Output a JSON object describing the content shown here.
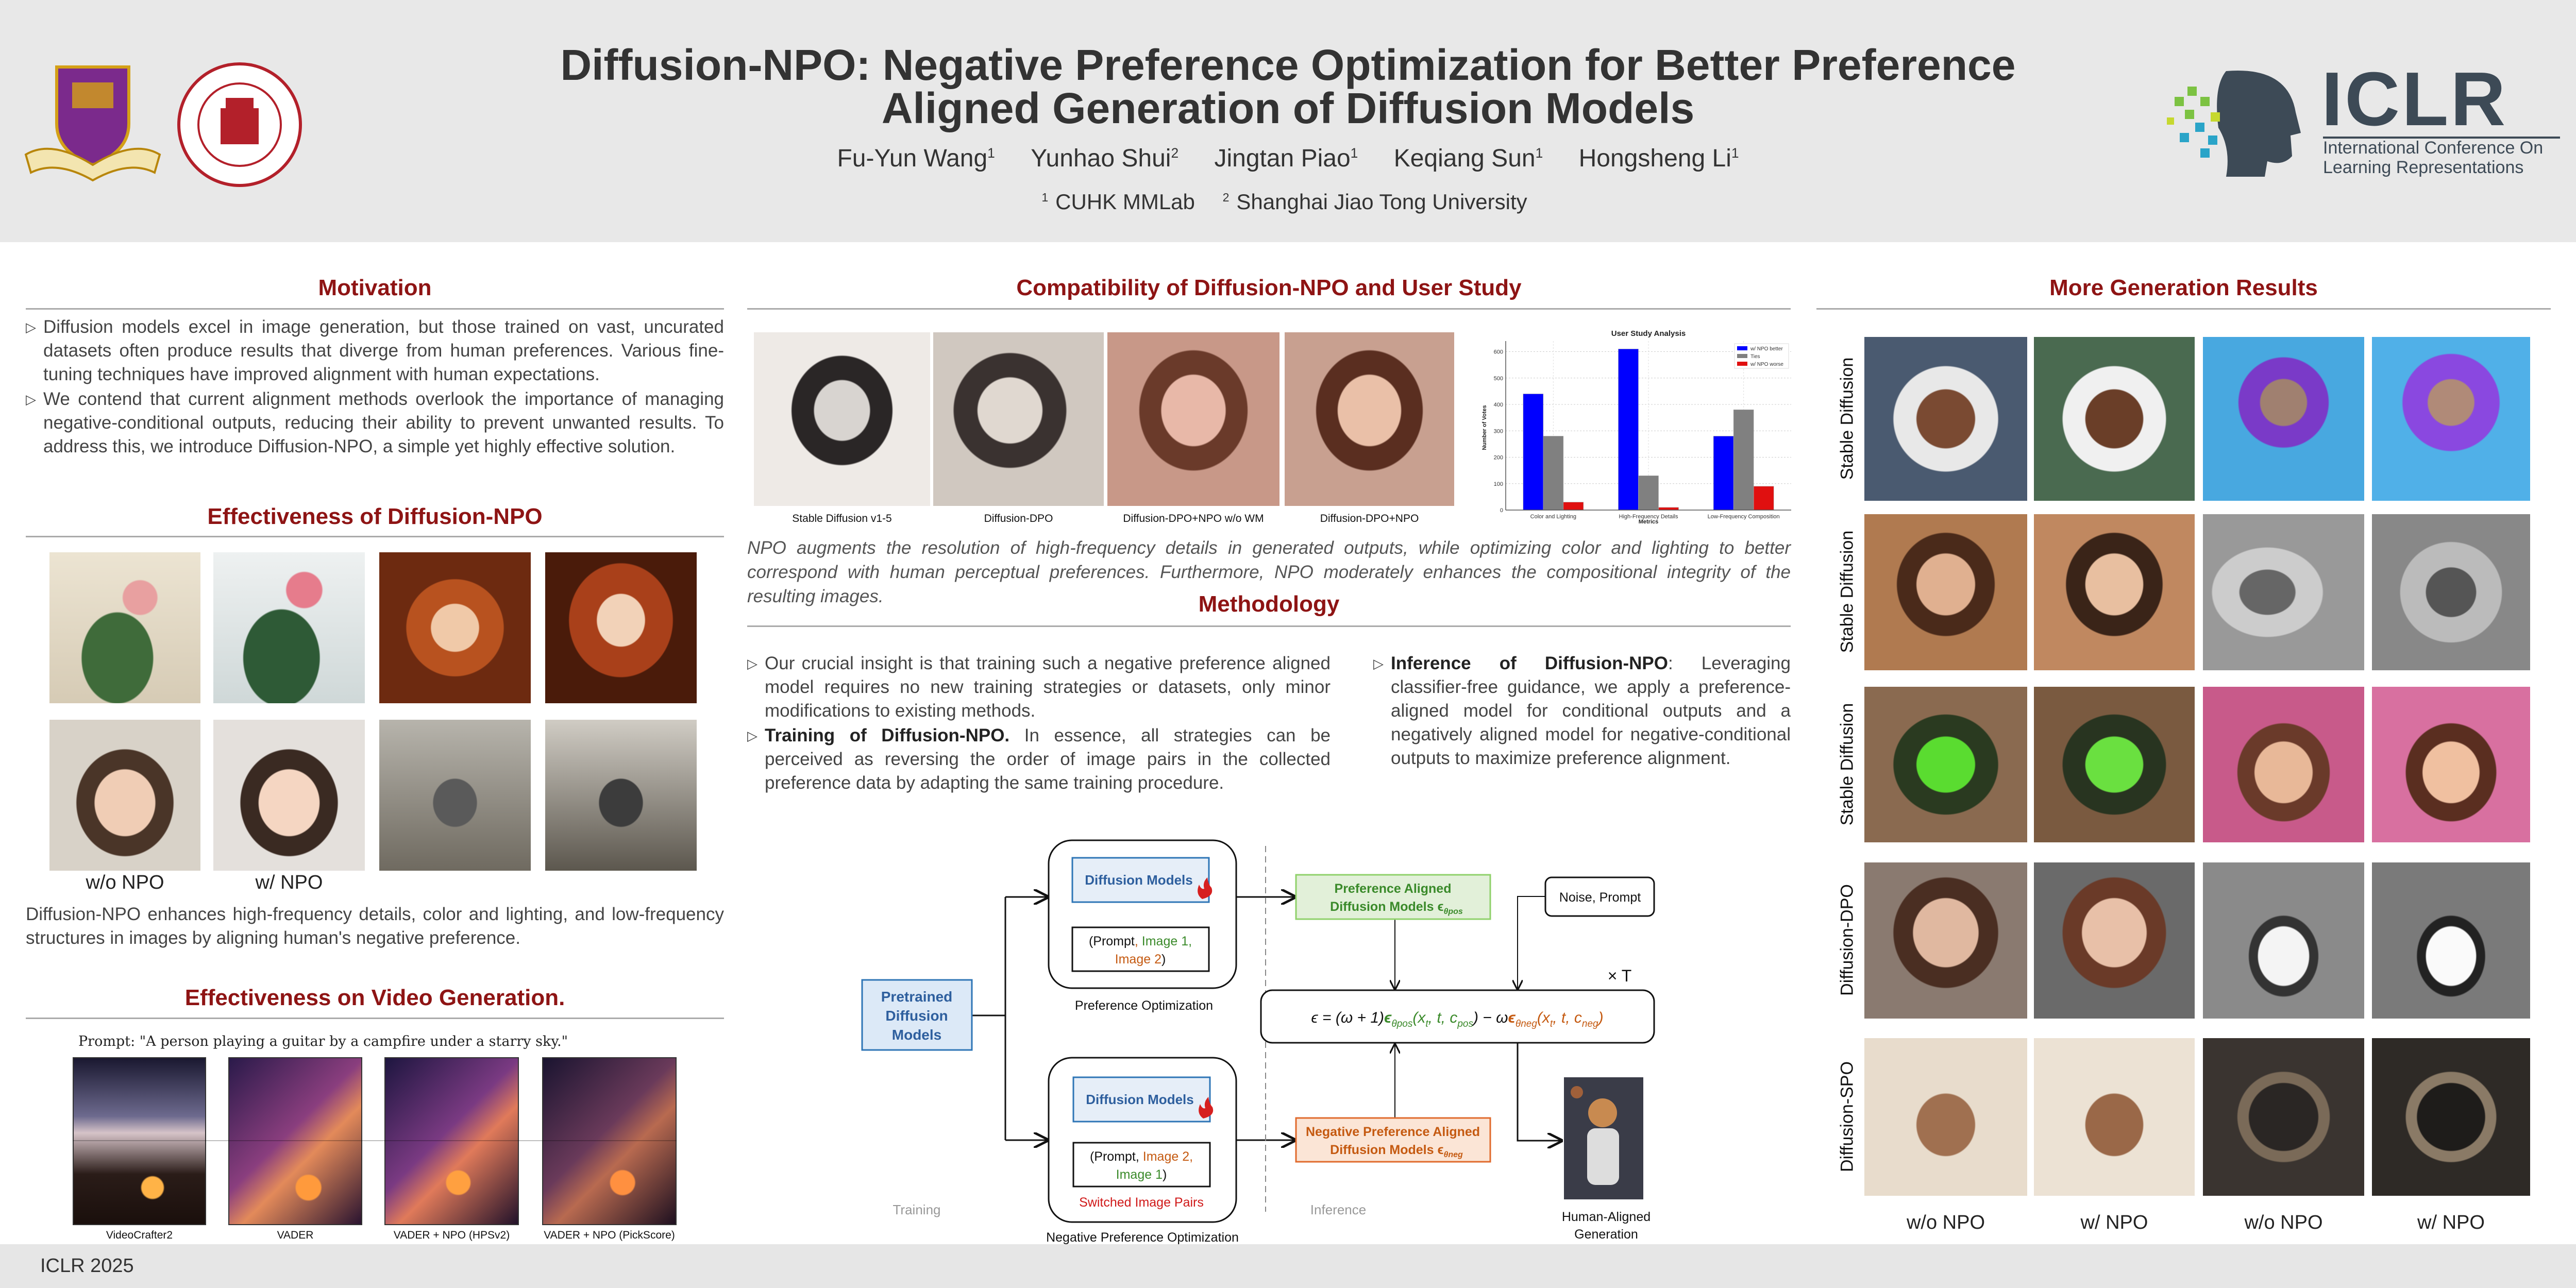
{
  "header": {
    "title_line1": "Diffusion-NPO: Negative Preference Optimization for Better Preference",
    "title_line2": "Aligned Generation of Diffusion Models",
    "authors": [
      {
        "name": "Fu-Yun Wang",
        "sup": "1"
      },
      {
        "name": "Yunhao Shui",
        "sup": "2"
      },
      {
        "name": "Jingtan Piao",
        "sup": "1"
      },
      {
        "name": "Keqiang Sun",
        "sup": "1"
      },
      {
        "name": "Hongsheng Li",
        "sup": "1"
      }
    ],
    "affiliations": [
      {
        "sup": "1",
        "name": "CUHK MMLab"
      },
      {
        "sup": "2",
        "name": "Shanghai Jiao Tong University"
      }
    ],
    "iclr_logo": {
      "text": "ICLR",
      "sub1": "International Conference On",
      "sub2": "Learning Representations"
    }
  },
  "footer": {
    "text": "ICLR 2025"
  },
  "motivation": {
    "heading": "Motivation",
    "bullets": [
      "Diffusion models excel in image generation, but those trained on vast, uncurated datasets often produce results that diverge from human preferences.  Various fine-tuning techniques have improved alignment with human expectations.",
      "We contend that current alignment methods overlook the importance of managing negative-conditional outputs, reducing their ability to prevent unwanted results. To address this, we introduce Diffusion-NPO, a simple yet highly effective solution."
    ]
  },
  "effectiveness": {
    "heading": "Effectiveness of Diffusion-NPO",
    "labels": [
      "w/o NPO",
      "w/ NPO"
    ],
    "paragraph": "Diffusion-NPO enhances high-frequency details, color and lighting, and low-frequency structures in images by aligning human's negative preference."
  },
  "video": {
    "heading": "Effectiveness on Video Generation.",
    "prompt": "Prompt: \"A person playing a guitar by a campfire under a starry sky.\"",
    "labels": [
      "VideoCrafter2",
      "VADER",
      "VADER + NPO (HPSv2)",
      "VADER + NPO (PickScore)"
    ]
  },
  "compat": {
    "heading": "Compatibility of Diffusion-NPO and User Study",
    "captions": [
      "Stable Diffusion v1-5",
      "Diffusion-DPO",
      "Diffusion-DPO+NPO w/o WM",
      "Diffusion-DPO+NPO"
    ],
    "paragraph": "NPO augments the resolution of high-frequency details in generated outputs, while optimizing color and lighting to better correspond with human perceptual preferences. Furthermore, NPO moderately enhances the compositional integrity of the resulting images."
  },
  "chart_data": {
    "type": "bar",
    "title": "User Study Analysis",
    "xlabel": "Metrics",
    "ylabel": "Number of Votes",
    "categories": [
      "Color and Lighting",
      "High-Frequency Details",
      "Low-Frequency Composition"
    ],
    "series": [
      {
        "name": "w/ NPO better",
        "values": [
          440,
          610,
          280
        ],
        "color": "#0000ff"
      },
      {
        "name": "Ties",
        "values": [
          280,
          130,
          380
        ],
        "color": "#808080"
      },
      {
        "name": "w/ NPO worse",
        "values": [
          30,
          10,
          90
        ],
        "color": "#e01010"
      }
    ],
    "yticks": [
      0,
      100,
      200,
      300,
      400,
      500,
      600
    ],
    "ylim": [
      0,
      640
    ],
    "grid": true,
    "legend": "top-right"
  },
  "methodology": {
    "heading": "Methodology",
    "bullet1": "Our crucial insight is that training such a negative preference aligned model requires no new training strategies or datasets, only minor modifications to existing methods.",
    "bullet2_bold": "Training of Diffusion-NPO.",
    "bullet2": " In essence, all strategies can be perceived as reversing the order of image pairs in the collected preference data by adapting the same training procedure.",
    "bullet3_bold": "Inference of Diffusion-NPO",
    "bullet3": ": Leveraging classifier-free guidance, we apply a preference-aligned model for conditional outputs and a negatively aligned model for negative-conditional outputs to maximize preference alignment."
  },
  "diagram": {
    "pretrained": [
      "Pretrained",
      "Diffusion",
      "Models"
    ],
    "diffusion_models": "Diffusion Models",
    "top_pair": {
      "open": "(Prompt",
      "comma": ", ",
      "img1": "Image 1,",
      "img2": "Image 2",
      "close": ")"
    },
    "bottom_pair": {
      "open": "(Prompt",
      "comma": ", ",
      "img2": "Image 2,",
      "img1": "Image 1",
      "close": ")"
    },
    "pref_opt": "Preference Optimization",
    "neg_pref_opt": "Negative Preference Optimization",
    "switched": "Switched Image Pairs",
    "training": "Training",
    "inference": "Inference",
    "pos_model": [
      "Preference Aligned",
      "Diffusion Models ϵ"
    ],
    "pos_sub": "θpos",
    "neg_model": [
      "Negative Preference Aligned",
      "Diffusion Models ϵ"
    ],
    "neg_sub": "θneg",
    "noise_prompt": "Noise, Prompt",
    "times_t": "× T",
    "formula": [
      {
        "t": "ϵ = (ω + 1)",
        "c": "#111"
      },
      {
        "t": "ϵ",
        "c": "#3a8a2a",
        "b": true
      },
      {
        "t": "θpos",
        "c": "#3a8a2a",
        "sub": true
      },
      {
        "t": "(x",
        "c": "#3a8a2a"
      },
      {
        "t": "t",
        "c": "#3a8a2a",
        "sub": true
      },
      {
        "t": ", t, c",
        "c": "#3a8a2a"
      },
      {
        "t": "pos",
        "c": "#3a8a2a",
        "sub": true
      },
      {
        "t": ") − ω",
        "c": "#111"
      },
      {
        "t": "ϵ",
        "c": "#c55a11",
        "b": true
      },
      {
        "t": "θneg",
        "c": "#c55a11",
        "sub": true
      },
      {
        "t": "(x",
        "c": "#c55a11"
      },
      {
        "t": "t",
        "c": "#c55a11",
        "sub": true
      },
      {
        "t": ", t, c",
        "c": "#c55a11"
      },
      {
        "t": "neg",
        "c": "#c55a11",
        "sub": true
      },
      {
        "t": ")",
        "c": "#c55a11"
      }
    ],
    "output": [
      "Human-Aligned",
      "Generation"
    ]
  },
  "more_results": {
    "heading": "More Generation Results",
    "row_labels": [
      "Stable Diffusion",
      "Stable Diffusion",
      "Stable Diffusion",
      "Diffusion-DPO",
      "Diffusion-SPO"
    ],
    "col_labels": [
      "w/o NPO",
      "w/ NPO",
      "w/o NPO",
      "w/ NPO"
    ]
  },
  "colors": {
    "heading": "#8e1414",
    "header_bg": "#e8e8e8",
    "blue": "#2e75b6",
    "green": "#3a8a2a",
    "orange": "#c55a11"
  }
}
